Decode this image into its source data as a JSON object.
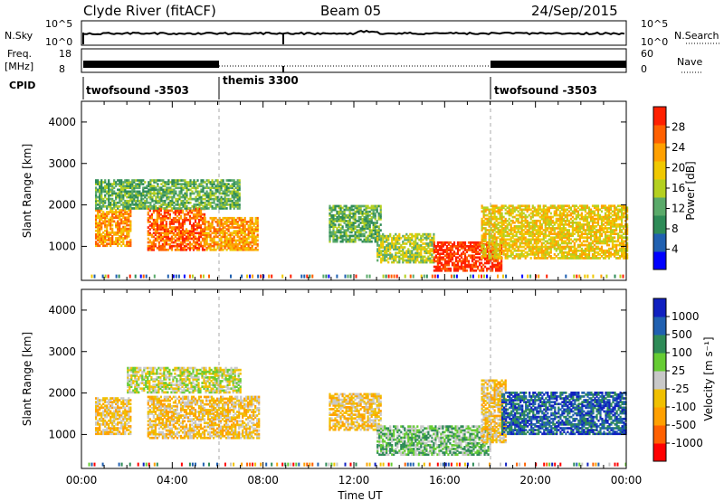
{
  "header": {
    "site": "Clyde River (fitACF)",
    "beam": "Beam 05",
    "date": "24/Sep/2015"
  },
  "top_panels": {
    "nsky": {
      "label": "N.Sky",
      "tick_top": "10^5",
      "tick_bottom": "10^0",
      "right_label": "N.Search",
      "right_tick_top": "10^5",
      "right_tick_bottom": "10^0"
    },
    "freq": {
      "label_line1": "Freq.",
      "label_line2": "[MHz]",
      "tick_top": "18",
      "tick_bottom": "8",
      "right_label": "Nave",
      "right_tick_top": "60",
      "right_tick_bottom": "0"
    },
    "cpid": {
      "label": "CPID",
      "segments": [
        "twofsound -3503",
        "themis 3300",
        "twofsound -3503"
      ]
    }
  },
  "power_panel": {
    "ylabel": "Slant Range [km]",
    "colorbar_label": "Power [dB]",
    "colorbar_ticks": [
      "28",
      "24",
      "20",
      "16",
      "12",
      "8",
      "4"
    ]
  },
  "velocity_panel": {
    "ylabel": "Slant Range [km]",
    "colorbar_label": "Velocity [m s⁻¹]",
    "colorbar_ticks": [
      "1000",
      "500",
      "100",
      "25",
      "-25",
      "-100",
      "-500",
      "-1000"
    ]
  },
  "xaxis": {
    "label": "Time UT",
    "ticks": [
      "00:00",
      "04:00",
      "08:00",
      "12:00",
      "16:00",
      "20:00",
      "00:00"
    ]
  },
  "yaxis_ticks": [
    "4000",
    "3000",
    "2000",
    "1000"
  ],
  "colors": {
    "power_scale": [
      "#0000ff",
      "#2060b0",
      "#2e8b57",
      "#5aaa6a",
      "#b4d020",
      "#f0c800",
      "#ffa000",
      "#ff6000",
      "#ff2000"
    ],
    "velocity_scale": [
      "#ff0000",
      "#ff6000",
      "#ffa000",
      "#f0c000",
      "#c8c8c8",
      "#66cc33",
      "#2e8b57",
      "#2060b0",
      "#1020c0"
    ]
  },
  "chart_data": [
    {
      "type": "heatmap",
      "title": "Power [dB]",
      "xlabel": "Time UT",
      "ylabel": "Slant Range [km]",
      "xlim": [
        0,
        24
      ],
      "ylim": [
        180,
        4500
      ],
      "clim": [
        0,
        30
      ],
      "regions": [
        {
          "t": [
            0.6,
            2.2
          ],
          "r": [
            1000,
            1900
          ],
          "value": 24
        },
        {
          "t": [
            2.9,
            5.4
          ],
          "r": [
            900,
            1900
          ],
          "value": 26
        },
        {
          "t": [
            5.4,
            7.8
          ],
          "r": [
            900,
            1700
          ],
          "value": 22
        },
        {
          "t": [
            10.9,
            13.2
          ],
          "r": [
            1100,
            2000
          ],
          "value": 12
        },
        {
          "t": [
            13.0,
            15.5
          ],
          "r": [
            600,
            1300
          ],
          "value": 14
        },
        {
          "t": [
            15.5,
            18.5
          ],
          "r": [
            400,
            1100
          ],
          "value": 30
        },
        {
          "t": [
            17.6,
            24.0
          ],
          "r": [
            700,
            2000
          ],
          "value": 20
        },
        {
          "t": [
            0.6,
            7.0
          ],
          "r": [
            1900,
            2600
          ],
          "value": 10
        }
      ]
    },
    {
      "type": "heatmap",
      "title": "Velocity [m s⁻¹]",
      "xlabel": "Time UT",
      "ylabel": "Slant Range [km]",
      "xlim": [
        0,
        24
      ],
      "ylim": [
        180,
        4500
      ],
      "clim": [
        -1000,
        1000
      ],
      "regions": [
        {
          "t": [
            0.6,
            2.2
          ],
          "r": [
            1000,
            1900
          ],
          "value": -300
        },
        {
          "t": [
            2.9,
            7.8
          ],
          "r": [
            900,
            1900
          ],
          "value": -200
        },
        {
          "t": [
            2.0,
            7.0
          ],
          "r": [
            2000,
            2600
          ],
          "value": 0
        },
        {
          "t": [
            10.9,
            13.2
          ],
          "r": [
            1100,
            2000
          ],
          "value": -150
        },
        {
          "t": [
            13.0,
            18.0
          ],
          "r": [
            500,
            1200
          ],
          "value": 150
        },
        {
          "t": [
            17.6,
            18.7
          ],
          "r": [
            800,
            2300
          ],
          "value": -300
        },
        {
          "t": [
            18.5,
            24.0
          ],
          "r": [
            1000,
            2000
          ],
          "value": 800
        }
      ]
    }
  ]
}
